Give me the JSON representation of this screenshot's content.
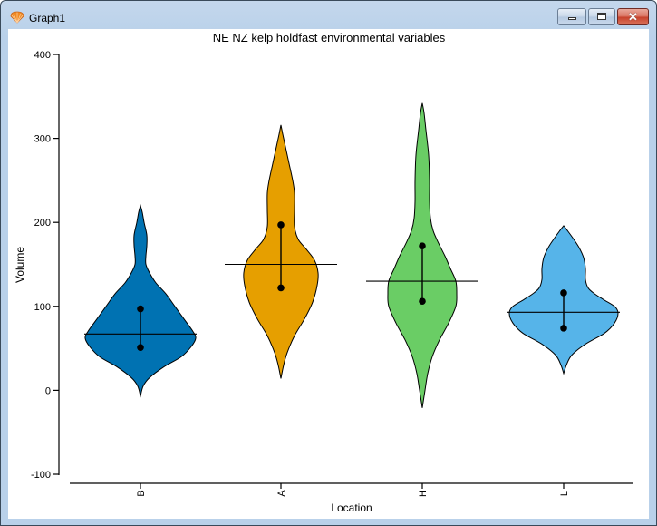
{
  "window": {
    "title": "Graph1",
    "buttons": {
      "minimize": "minimize",
      "maximize": "maximize",
      "close": "✕"
    }
  },
  "chart_data": {
    "type": "violin",
    "title": "NE NZ kelp holdfast environmental variables",
    "xlabel": "Location",
    "ylabel": "Volume",
    "ylim": [
      -100,
      400
    ],
    "yticks": [
      -100,
      0,
      100,
      200,
      300,
      400
    ],
    "categories": [
      "B",
      "A",
      "H",
      "L"
    ],
    "grid": false,
    "legend": null,
    "series": [
      {
        "name": "B",
        "color": "#0072b2",
        "min": -7,
        "max": 220,
        "mean": 67,
        "ci_upper": 97,
        "ci_lower": 51
      },
      {
        "name": "A",
        "color": "#e69f00",
        "min": 14,
        "max": 316,
        "mean": 150,
        "ci_upper": 197,
        "ci_lower": 122
      },
      {
        "name": "H",
        "color": "#6acd65",
        "min": -21,
        "max": 342,
        "mean": 130,
        "ci_upper": 172,
        "ci_lower": 106
      },
      {
        "name": "L",
        "color": "#56b4e9",
        "min": 20,
        "max": 196,
        "mean": 93,
        "ci_upper": 116,
        "ci_lower": 74
      }
    ]
  }
}
